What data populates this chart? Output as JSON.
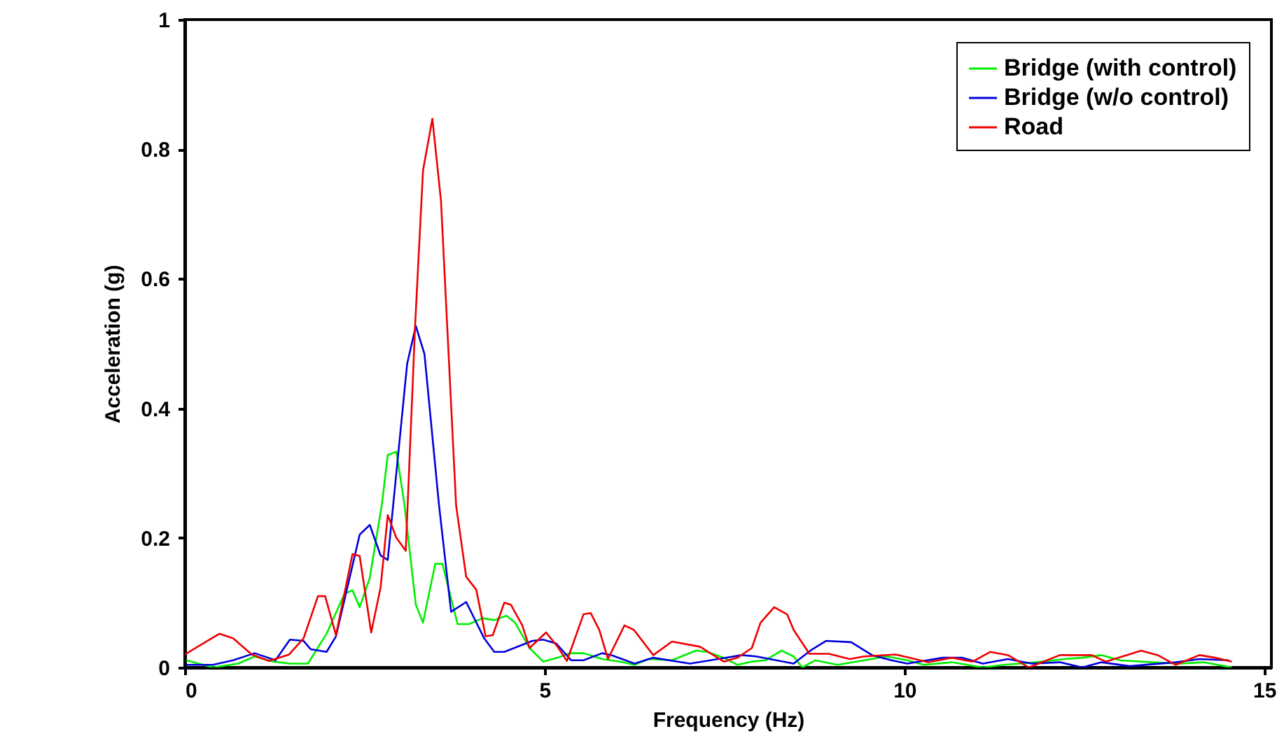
{
  "chart_data": {
    "type": "line",
    "xlabel": "Frequency  (Hz)",
    "ylabel": "Acceleration  (g)",
    "xlim": [
      0,
      15.1
    ],
    "ylim": [
      0,
      1
    ],
    "xticks": [
      0,
      5,
      10,
      15
    ],
    "yticks": [
      0,
      0.2,
      0.4,
      0.6,
      0.8,
      1
    ],
    "grid": false,
    "legend": "top right",
    "marker": "none",
    "line_style": "solid",
    "series": [
      {
        "name": "Bridge (with control)",
        "color": "#00ee00",
        "x": [
          0.02,
          0.39,
          0.74,
          0.97,
          1.23,
          1.46,
          1.71,
          1.97,
          2.22,
          2.33,
          2.43,
          2.57,
          2.74,
          2.82,
          2.94,
          3.05,
          3.21,
          3.31,
          3.48,
          3.58,
          3.79,
          3.95,
          4.14,
          4.3,
          4.47,
          4.59,
          4.79,
          4.98,
          5.18,
          5.35,
          5.54,
          5.8,
          6.05,
          6.25,
          6.44,
          6.77,
          7.1,
          7.26,
          7.49,
          7.68,
          7.88,
          8.07,
          8.29,
          8.46,
          8.58,
          8.76,
          9.07,
          9.44,
          9.75,
          10.04,
          10.27,
          10.66,
          11.09,
          11.38,
          11.83,
          12.22,
          12.47,
          12.74,
          13.0,
          13.44,
          13.83,
          14.16,
          14.55
        ],
        "values": [
          0.011,
          0,
          0.006,
          0.017,
          0.009,
          0.006,
          0.006,
          0.052,
          0.114,
          0.119,
          0.093,
          0.138,
          0.253,
          0.328,
          0.333,
          0.253,
          0.097,
          0.069,
          0.16,
          0.16,
          0.067,
          0.067,
          0.076,
          0.073,
          0.08,
          0.069,
          0.03,
          0.009,
          0.015,
          0.022,
          0.022,
          0.013,
          0.009,
          0.004,
          0.013,
          0.011,
          0.026,
          0.024,
          0.015,
          0.004,
          0.009,
          0.011,
          0.026,
          0.017,
          0,
          0.011,
          0.004,
          0.011,
          0.017,
          0.011,
          0.004,
          0.008,
          0,
          0.004,
          0.008,
          0.013,
          0.015,
          0.019,
          0.011,
          0.008,
          0.006,
          0.008,
          0
        ]
      },
      {
        "name": "Bridge (w/o control)",
        "color": "#0000dd",
        "x": [
          0.02,
          0.39,
          0.67,
          0.97,
          1.26,
          1.46,
          1.65,
          1.75,
          1.97,
          2.1,
          2.43,
          2.57,
          2.72,
          2.82,
          3.09,
          3.21,
          3.33,
          3.53,
          3.7,
          3.91,
          4.16,
          4.3,
          4.44,
          4.83,
          4.98,
          5.16,
          5.37,
          5.54,
          5.8,
          5.93,
          6.25,
          6.51,
          7.02,
          7.41,
          7.74,
          7.94,
          8.46,
          8.72,
          8.91,
          9.26,
          9.55,
          9.82,
          10.04,
          10.53,
          10.8,
          11.09,
          11.44,
          11.77,
          12.16,
          12.47,
          12.74,
          13.13,
          13.77,
          14.1,
          14.51
        ],
        "values": [
          0.004,
          0.004,
          0.011,
          0.022,
          0.011,
          0.043,
          0.041,
          0.028,
          0.024,
          0.048,
          0.205,
          0.22,
          0.173,
          0.166,
          0.469,
          0.527,
          0.484,
          0.253,
          0.086,
          0.101,
          0.045,
          0.024,
          0.024,
          0.041,
          0.043,
          0.037,
          0.011,
          0.011,
          0.022,
          0.019,
          0.006,
          0.015,
          0.006,
          0.013,
          0.019,
          0.017,
          0.006,
          0.028,
          0.041,
          0.039,
          0.019,
          0.011,
          0.006,
          0.015,
          0.015,
          0.006,
          0.013,
          0.006,
          0.008,
          0,
          0.008,
          0.002,
          0.008,
          0.013,
          0.011
        ]
      },
      {
        "name": "Road",
        "color": "#ee0000",
        "x": [
          0,
          0.3,
          0.48,
          0.67,
          0.93,
          1.17,
          1.45,
          1.65,
          1.85,
          1.95,
          2.1,
          2.33,
          2.43,
          2.59,
          2.72,
          2.82,
          2.94,
          3.07,
          3.2,
          3.31,
          3.44,
          3.56,
          3.77,
          3.91,
          4.05,
          4.18,
          4.28,
          4.44,
          4.53,
          4.69,
          4.79,
          5.02,
          5.18,
          5.31,
          5.54,
          5.64,
          5.76,
          5.88,
          6.11,
          6.24,
          6.51,
          6.77,
          7.16,
          7.49,
          7.68,
          7.88,
          8.0,
          8.19,
          8.37,
          8.46,
          8.68,
          8.95,
          9.24,
          9.44,
          9.88,
          10.33,
          10.66,
          10.95,
          11.19,
          11.44,
          11.73,
          12.16,
          12.6,
          12.8,
          13.29,
          13.52,
          13.77,
          14.1,
          14.32,
          14.55
        ],
        "values": [
          0.02,
          0.04,
          0.052,
          0.045,
          0.02,
          0.01,
          0.02,
          0.045,
          0.11,
          0.11,
          0.05,
          0.175,
          0.172,
          0.054,
          0.123,
          0.235,
          0.2,
          0.18,
          0.527,
          0.767,
          0.847,
          0.72,
          0.25,
          0.14,
          0.12,
          0.048,
          0.05,
          0.1,
          0.097,
          0.065,
          0.03,
          0.054,
          0.032,
          0.01,
          0.082,
          0.084,
          0.058,
          0.013,
          0.065,
          0.058,
          0.019,
          0.04,
          0.032,
          0.009,
          0.015,
          0.03,
          0.069,
          0.093,
          0.082,
          0.058,
          0.021,
          0.021,
          0.013,
          0.017,
          0.02,
          0.008,
          0.015,
          0.009,
          0.024,
          0.019,
          0,
          0.019,
          0.019,
          0.009,
          0.026,
          0.019,
          0.004,
          0.019,
          0.015,
          0.009
        ]
      }
    ]
  }
}
